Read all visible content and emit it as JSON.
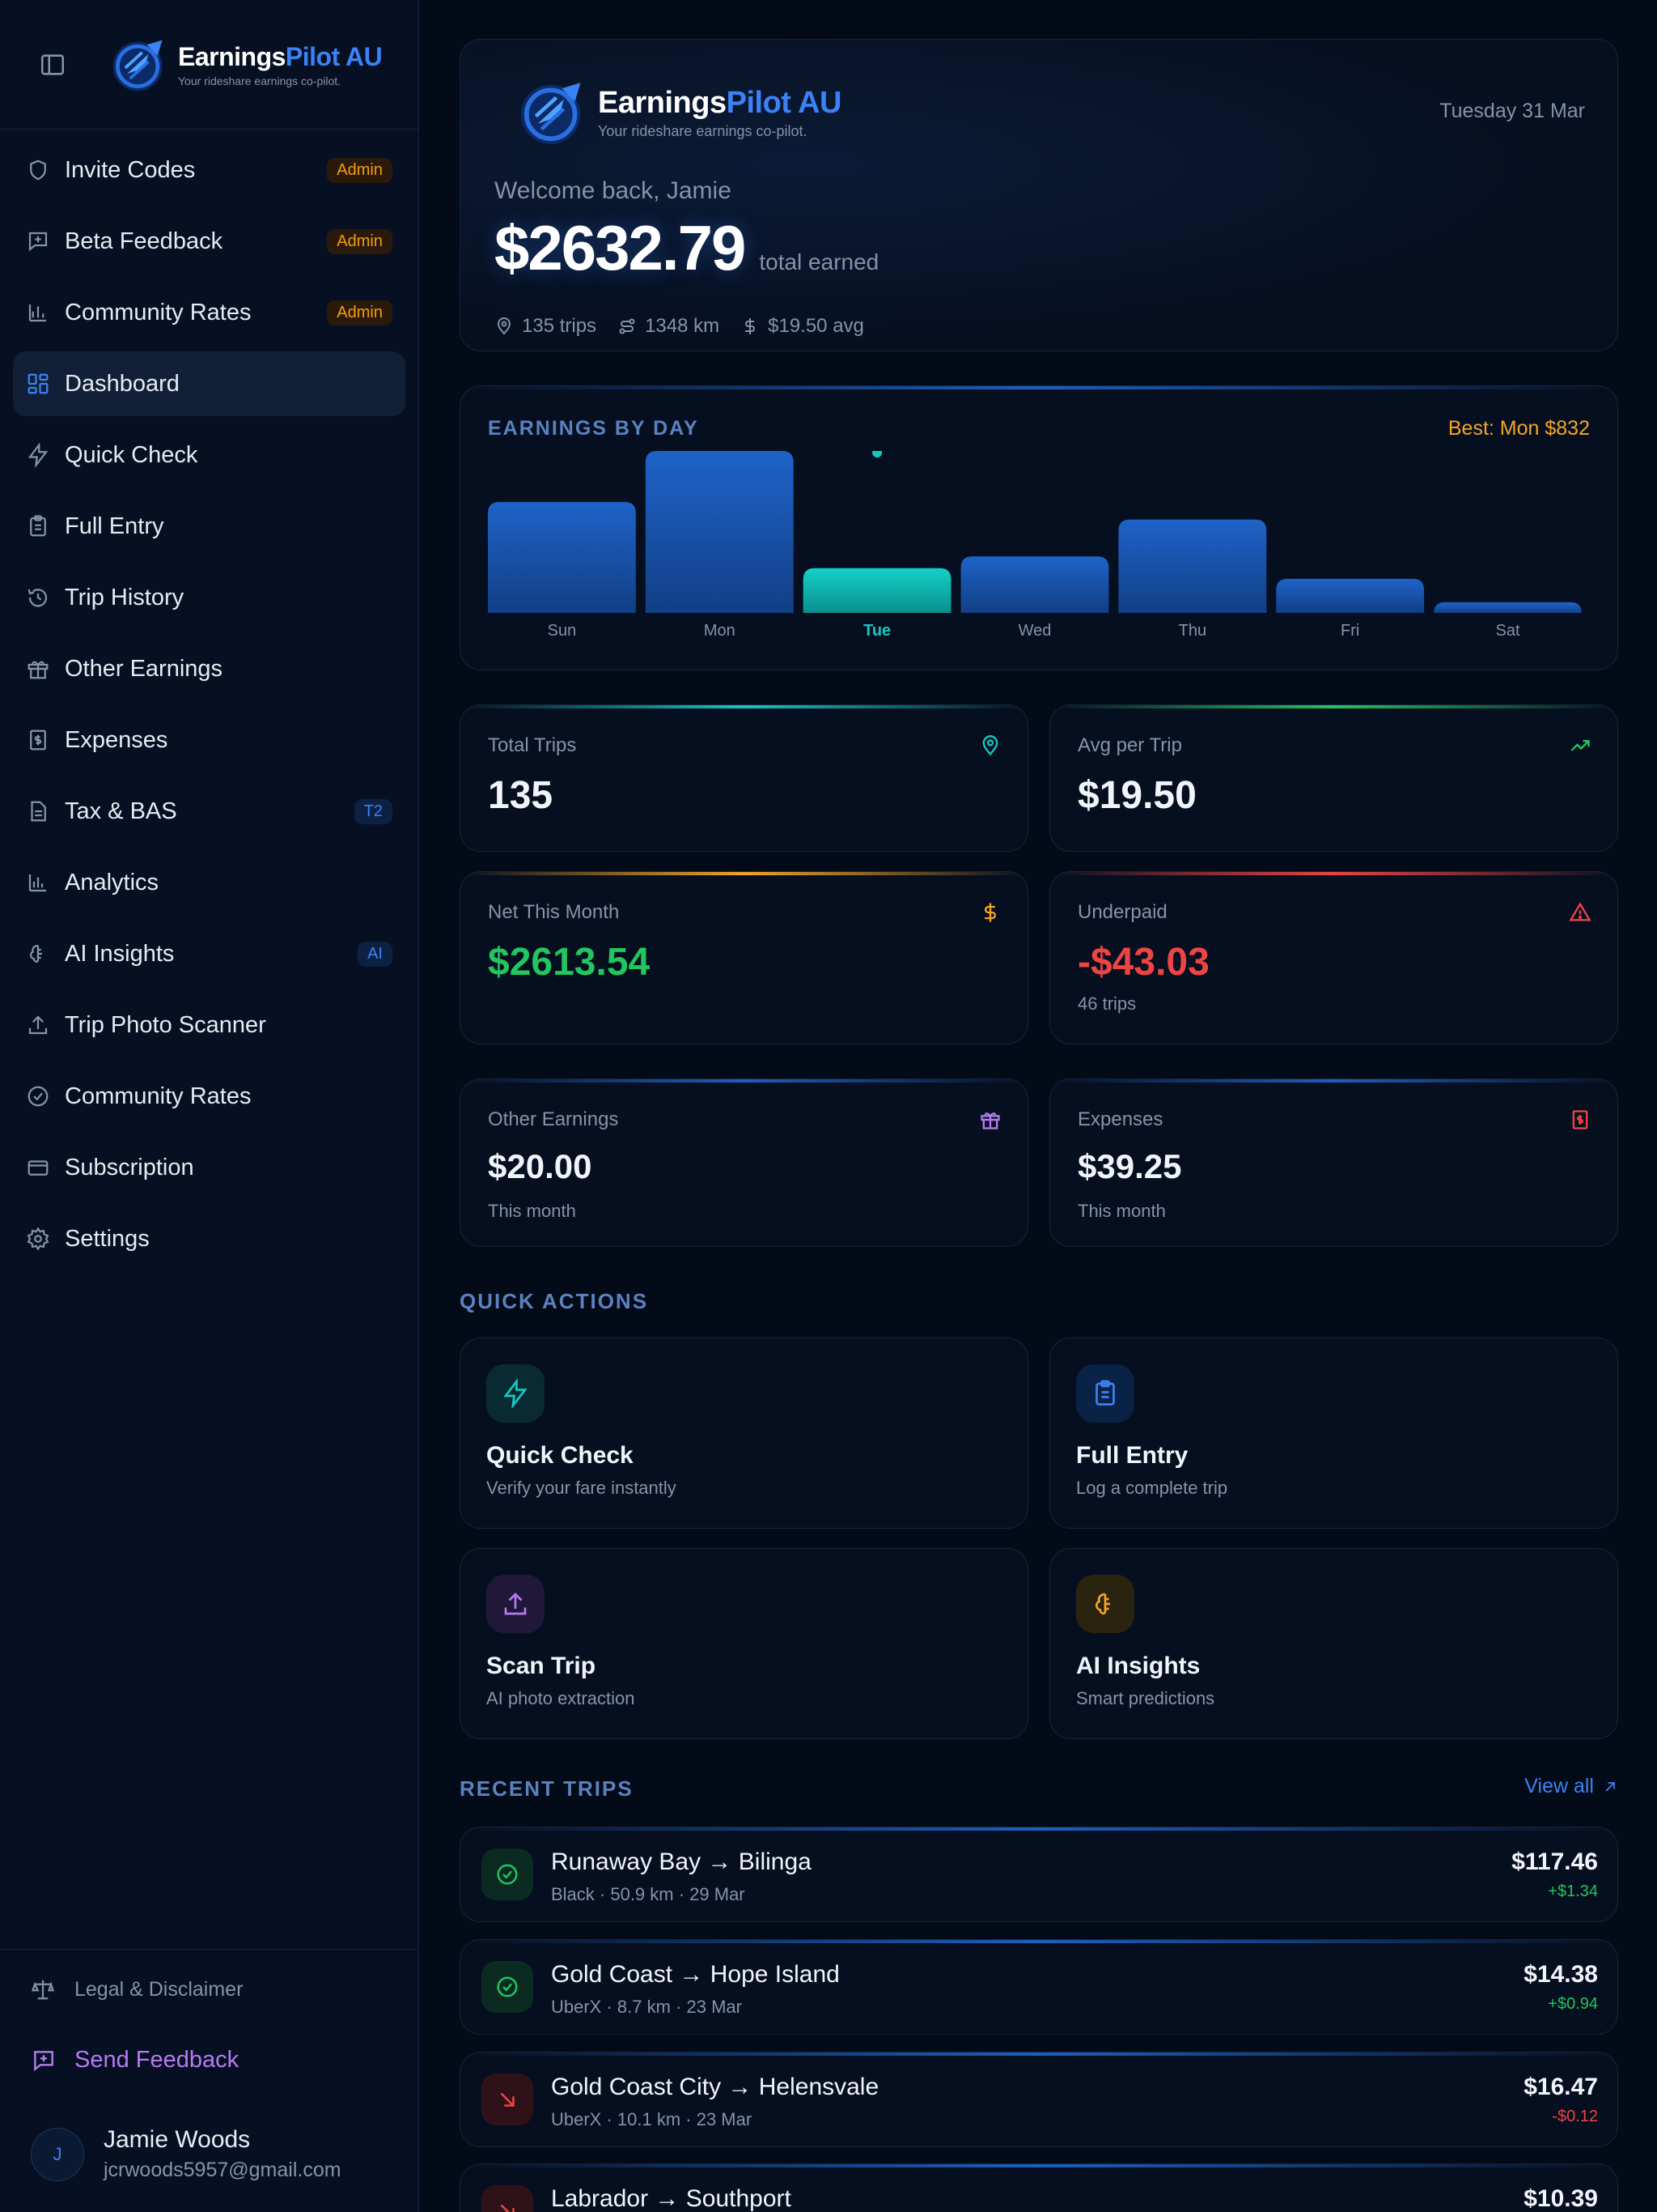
{
  "brand": {
    "name_main": "Earnings",
    "name_accent": "Pilot AU",
    "tagline": "Your rideshare earnings co-pilot."
  },
  "sidebar": {
    "items": [
      {
        "label": "Invite Codes",
        "badge": "Admin"
      },
      {
        "label": "Beta Feedback",
        "badge": "Admin"
      },
      {
        "label": "Community Rates",
        "badge": "Admin"
      },
      {
        "label": "Dashboard"
      },
      {
        "label": "Quick Check"
      },
      {
        "label": "Full Entry"
      },
      {
        "label": "Trip History"
      },
      {
        "label": "Other Earnings"
      },
      {
        "label": "Expenses"
      },
      {
        "label": "Tax & BAS",
        "badge": "T2"
      },
      {
        "label": "Analytics"
      },
      {
        "label": "AI Insights",
        "badge": "AI"
      },
      {
        "label": "Trip Photo Scanner"
      },
      {
        "label": "Community Rates"
      },
      {
        "label": "Subscription"
      },
      {
        "label": "Settings"
      }
    ],
    "legal": "Legal & Disclaimer",
    "feedback": "Send Feedback",
    "user": {
      "initial": "J",
      "name": "Jamie Woods",
      "email": "jcrwoods5957@gmail.com"
    }
  },
  "hero": {
    "date": "Tuesday 31 Mar",
    "welcome": "Welcome back, Jamie",
    "amount": "$2632.79",
    "amount_label": "total earned",
    "trips": "135 trips",
    "distance": "1348 km",
    "avg": "$19.50 avg"
  },
  "chart_data": {
    "type": "bar",
    "title": "EARNINGS BY DAY",
    "best_label": "Best: Mon $832",
    "categories": [
      "Sun",
      "Mon",
      "Tue",
      "Wed",
      "Thu",
      "Fri",
      "Sat"
    ],
    "values": [
      570,
      832,
      230,
      290,
      480,
      175,
      55
    ],
    "highlight": "Tue",
    "ylim": [
      0,
      832
    ],
    "colors": {
      "bar": "#1d5fbf",
      "highlight": "#14c8c0"
    }
  },
  "stats": {
    "total_trips": {
      "label": "Total Trips",
      "value": "135"
    },
    "avg_trip": {
      "label": "Avg per Trip",
      "value": "$19.50"
    },
    "net_month": {
      "label": "Net This Month",
      "value": "$2613.54"
    },
    "underpaid": {
      "label": "Underpaid",
      "value": "-$43.03",
      "sub": "46 trips"
    },
    "other_earnings": {
      "label": "Other Earnings",
      "value": "$20.00",
      "sub": "This month"
    },
    "expenses": {
      "label": "Expenses",
      "value": "$39.25",
      "sub": "This month"
    }
  },
  "quick_actions": {
    "title": "QUICK ACTIONS",
    "items": [
      {
        "title": "Quick Check",
        "sub": "Verify your fare instantly"
      },
      {
        "title": "Full Entry",
        "sub": "Log a complete trip"
      },
      {
        "title": "Scan Trip",
        "sub": "AI photo extraction"
      },
      {
        "title": "AI Insights",
        "sub": "Smart predictions"
      }
    ]
  },
  "recent_trips": {
    "title": "RECENT TRIPS",
    "view_all": "View all",
    "items": [
      {
        "route": "Runaway Bay → Bilinga",
        "meta": "Black · 50.9 km · 29 Mar",
        "amount": "$117.46",
        "diff": "+$1.34"
      },
      {
        "route": "Gold Coast → Hope Island",
        "meta": "UberX · 8.7 km · 23 Mar",
        "amount": "$14.38",
        "diff": "+$0.94"
      },
      {
        "route": "Gold Coast City → Helensvale",
        "meta": "UberX · 10.1 km · 23 Mar",
        "amount": "$16.47",
        "diff": "-$0.12"
      },
      {
        "route": "Labrador → Southport",
        "meta": "",
        "amount": "$10.39",
        "diff": ""
      }
    ]
  },
  "colors": {
    "accent": "#3b82f6",
    "teal": "#14c8c0",
    "green": "#22c55e",
    "red": "#ef4444",
    "amber": "#f5a524",
    "purple": "#b57bf0"
  }
}
